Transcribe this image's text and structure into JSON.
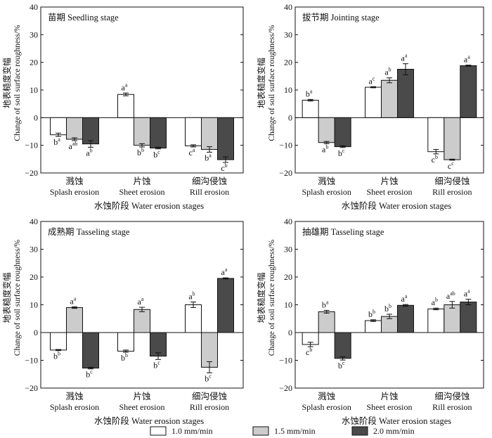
{
  "legend": [
    {
      "label": "1.0 mm/min",
      "color": "#ffffff"
    },
    {
      "label": "1.5 mm/min",
      "color": "#cccccc"
    },
    {
      "label": "2.0 mm/min",
      "color": "#4a4a4a"
    }
  ],
  "colors": {
    "axis": "#111111",
    "bar_edge": "#111111"
  },
  "chart_data": [
    {
      "type": "bar",
      "title": "苗期 Seedling stage",
      "ylabel_zh": "地表糙度变幅",
      "ylabel_en": "Change of soil surface roughness/%",
      "xlabel": "水蚀阶段 Water erosion stages",
      "ylim": [
        -20,
        40
      ],
      "yticks": [
        "−20",
        "−10",
        "0",
        "10",
        "20",
        "30",
        "40"
      ],
      "categories": [
        {
          "zh": "溅蚀",
          "en": "Splash erosion"
        },
        {
          "zh": "片蚀",
          "en": "Sheet erosion"
        },
        {
          "zh": "细沟侵蚀",
          "en": "Rill erosion"
        }
      ],
      "series": [
        {
          "name": "1.0 mm/min",
          "values": [
            -6.2,
            8.4,
            -10.2
          ],
          "errors": [
            0.6,
            0.5,
            0.4
          ],
          "labels": [
            [
              "b",
              "a"
            ],
            [
              "a",
              "a"
            ],
            [
              "c",
              "a"
            ]
          ]
        },
        {
          "name": "1.5 mm/min",
          "values": [
            -7.8,
            -10.0,
            -11.5
          ],
          "errors": [
            0.5,
            0.6,
            1.0
          ],
          "labels": [
            [
              "a",
              "ab"
            ],
            [
              "b",
              "b"
            ],
            [
              "b",
              "a"
            ]
          ]
        },
        {
          "name": "2.0 mm/min",
          "values": [
            -9.5,
            -11.0,
            -15.2
          ],
          "errors": [
            1.2,
            0.3,
            1.0
          ],
          "labels": [
            [
              "a",
              "b"
            ],
            [
              "b",
              "c"
            ],
            [
              "c",
              "b"
            ]
          ]
        }
      ]
    },
    {
      "type": "bar",
      "title": "拔节期 Jointing stage",
      "ylabel_zh": "地表糙度变幅",
      "ylabel_en": "Change of soil surface roughness/%",
      "xlabel": "水蚀阶段 Water erosion stages",
      "ylim": [
        -20,
        40
      ],
      "yticks": [
        "−20",
        "−10",
        "0",
        "10",
        "20",
        "30",
        "40"
      ],
      "categories": [
        {
          "zh": "溅蚀",
          "en": "Splash erosion"
        },
        {
          "zh": "片蚀",
          "en": "Sheet erosion"
        },
        {
          "zh": "细沟侵蚀",
          "en": "Rill erosion"
        }
      ],
      "series": [
        {
          "name": "1.0 mm/min",
          "values": [
            6.3,
            11.0,
            -12.3
          ],
          "errors": [
            0.3,
            0.2,
            0.8
          ],
          "labels": [
            [
              "b",
              "a"
            ],
            [
              "a",
              "c"
            ],
            [
              "c",
              "b"
            ]
          ]
        },
        {
          "name": "1.5 mm/min",
          "values": [
            -9.0,
            13.5,
            -15.2
          ],
          "errors": [
            0.4,
            0.9,
            0.2
          ],
          "labels": [
            [
              "a",
              "b"
            ],
            [
              "a",
              "b"
            ],
            [
              "c",
              "c"
            ]
          ]
        },
        {
          "name": "2.0 mm/min",
          "values": [
            -10.5,
            17.5,
            18.8
          ],
          "errors": [
            0.3,
            2.0,
            0.2
          ],
          "labels": [
            [
              "b",
              "c"
            ],
            [
              "a",
              "a"
            ],
            [
              "a",
              "a"
            ]
          ]
        }
      ]
    },
    {
      "type": "bar",
      "title": "成熟期 Tasseling stage",
      "ylabel_zh": "地表糙度变幅",
      "ylabel_en": "Change of soil surface roughness/%",
      "xlabel": "水蚀阶段 Water erosion stages",
      "ylim": [
        -20,
        40
      ],
      "yticks": [
        "−20",
        "−10",
        "0",
        "10",
        "20",
        "30",
        "40"
      ],
      "categories": [
        {
          "zh": "溅蚀",
          "en": "Splash erosion"
        },
        {
          "zh": "片蚀",
          "en": "Sheet erosion"
        },
        {
          "zh": "细沟侵蚀",
          "en": "Rill erosion"
        }
      ],
      "series": [
        {
          "name": "1.0 mm/min",
          "values": [
            -6.3,
            -6.7,
            10.0
          ],
          "errors": [
            0.2,
            0.4,
            1.0
          ],
          "labels": [
            [
              "b",
              "b"
            ],
            [
              "b",
              "b"
            ],
            [
              "a",
              "b"
            ]
          ]
        },
        {
          "name": "1.5 mm/min",
          "values": [
            9.0,
            8.3,
            -12.5
          ],
          "errors": [
            0.3,
            0.8,
            2.0
          ],
          "labels": [
            [
              "a",
              "a"
            ],
            [
              "a",
              "a"
            ],
            [
              "b",
              "c"
            ]
          ]
        },
        {
          "name": "2.0 mm/min",
          "values": [
            -12.8,
            -8.5,
            19.5
          ],
          "errors": [
            0.3,
            1.2,
            0.2
          ],
          "labels": [
            [
              "b",
              "c"
            ],
            [
              "b",
              "c"
            ],
            [
              "a",
              "a"
            ]
          ]
        }
      ]
    },
    {
      "type": "bar",
      "title": "抽雄期 Tasseling stage",
      "ylabel_zh": "地表糙度变幅",
      "ylabel_en": "Change of soil surface roughness/%",
      "xlabel": "水蚀阶段 Water erosion stages",
      "ylim": [
        -20,
        40
      ],
      "yticks": [
        "−20",
        "−10",
        "0",
        "10",
        "20",
        "30",
        "40"
      ],
      "categories": [
        {
          "zh": "溅蚀",
          "en": "Splash erosion"
        },
        {
          "zh": "片蚀",
          "en": "Sheet erosion"
        },
        {
          "zh": "细沟侵蚀",
          "en": "Rill erosion"
        }
      ],
      "series": [
        {
          "name": "1.0 mm/min",
          "values": [
            -4.3,
            4.3,
            8.5
          ],
          "errors": [
            0.8,
            0.3,
            0.3
          ],
          "labels": [
            [
              "c",
              "b"
            ],
            [
              "b",
              "b"
            ],
            [
              "a",
              "b"
            ]
          ]
        },
        {
          "name": "1.5 mm/min",
          "values": [
            7.5,
            5.8,
            10.0
          ],
          "errors": [
            0.5,
            0.8,
            1.2
          ],
          "labels": [
            [
              "b",
              "a"
            ],
            [
              "b",
              "b"
            ],
            [
              "a",
              "ab"
            ]
          ]
        },
        {
          "name": "2.0 mm/min",
          "values": [
            -9.3,
            9.8,
            11.0
          ],
          "errors": [
            0.6,
            0.3,
            1.0
          ],
          "labels": [
            [
              "b",
              "c"
            ],
            [
              "a",
              "a"
            ],
            [
              "a",
              "a"
            ]
          ]
        }
      ]
    }
  ]
}
